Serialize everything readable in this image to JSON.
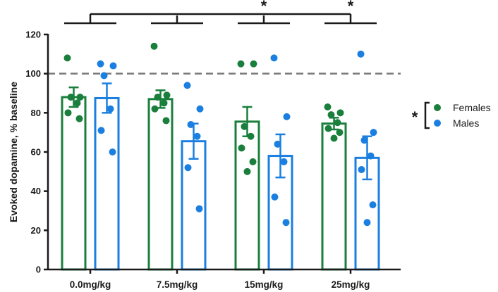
{
  "chart_data": {
    "type": "bar",
    "ylabel": "Evoked dopamine, % baseline",
    "xlabel": "",
    "ylim": [
      0,
      120
    ],
    "yticks": [
      0,
      20,
      40,
      60,
      80,
      100,
      120
    ],
    "reference_line": 100,
    "categories": [
      "0.0mg/kg",
      "7.5mg/kg",
      "15mg/kg",
      "25mg/kg"
    ],
    "series": [
      {
        "name": "Females",
        "color": "#1a7f3c",
        "values": [
          88,
          87,
          75.5,
          74.5
        ],
        "sem": [
          5,
          4.5,
          7.5,
          3
        ],
        "points": [
          [
            108,
            88,
            88,
            85,
            80,
            77
          ],
          [
            114,
            89,
            88,
            85,
            82,
            76
          ],
          [
            105,
            105,
            73,
            68,
            62,
            55,
            50
          ],
          [
            83,
            80,
            79,
            75,
            72,
            70,
            67
          ]
        ]
      },
      {
        "name": "Males",
        "color": "#1a7fe0",
        "values": [
          87.5,
          65.5,
          58,
          57
        ],
        "sem": [
          7.5,
          9,
          11,
          11
        ],
        "points": [
          [
            105,
            104,
            99,
            82,
            71,
            60
          ],
          [
            94,
            82,
            74,
            68,
            52,
            31
          ],
          [
            108,
            78,
            64,
            55,
            37,
            24
          ],
          [
            110,
            70,
            66,
            58,
            51,
            33,
            24
          ]
        ]
      }
    ],
    "significance": {
      "main_bracket_star": "*",
      "dose_stars": [
        "",
        "",
        "*",
        "*"
      ],
      "legend_star": "*"
    },
    "legend": {
      "position": "right",
      "entries": [
        "Females",
        "Males"
      ]
    }
  }
}
